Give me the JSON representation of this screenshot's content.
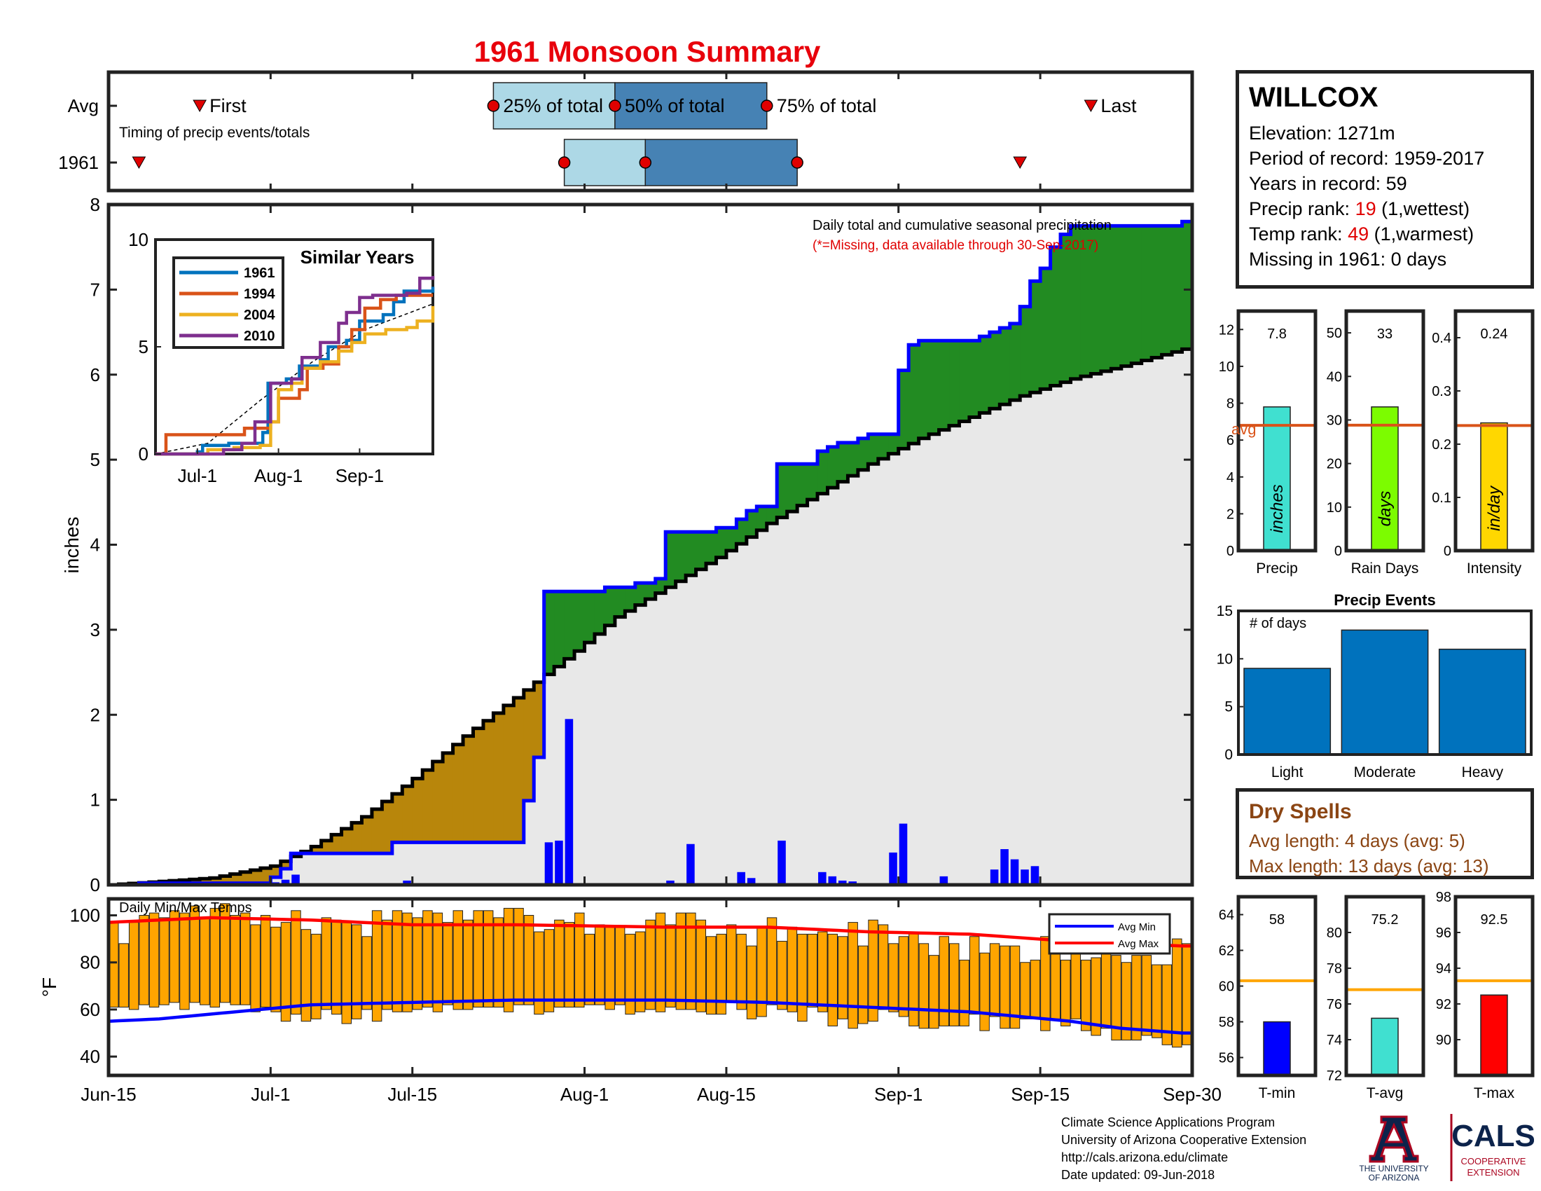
{
  "title": "1961 Monsoon Summary",
  "station": {
    "name": "WILLCOX",
    "elevation": "Elevation: 1271m",
    "period": "Period of record: 1959-2017",
    "years": "Years in record: 59",
    "precip_rank_label": "Precip rank: ",
    "precip_rank_value": "19",
    "precip_rank_note": " (1,wettest)",
    "temp_rank_label": "Temp rank: ",
    "temp_rank_value": "49",
    "temp_rank_note": " (1,warmest)",
    "missing": "Missing in 1961: 0 days"
  },
  "dry_spells": {
    "title": "Dry Spells",
    "avg_length": "Avg length: 4 days (avg: 5)",
    "max_length": "Max length: 13 days (avg: 13)"
  },
  "credits": {
    "line1": "Climate Science Applications Program",
    "line2": "University of Arizona Cooperative Extension",
    "line3": "http://cals.arizona.edu/climate",
    "line4": "Date updated: 09-Jun-2018"
  },
  "logos": {
    "ua_line1": "THE UNIVERSITY",
    "ua_line2": "OF ARIZONA",
    "cals_name": "CALS",
    "cals_line1": "COOPERATIVE",
    "cals_line2": "EXTENSION"
  },
  "colors": {
    "title_red": "#e8000b",
    "above_avg": "#228b22",
    "below_avg": "#b8860b",
    "cumulative_line": "#0000ff",
    "daily_bars": "#0000ff",
    "clim_fill": "#e8e8e8",
    "temp_bars": "#ffa500",
    "avg_min": "#0000ff",
    "avg_max": "#ff0000",
    "timing_light": "#add8e6",
    "timing_dark": "#4682b4"
  },
  "chart_data": [
    {
      "id": "timing",
      "type": "timeline",
      "rows": [
        "Avg",
        "1961"
      ],
      "annotation": "Timing of precip events/totals",
      "labels": {
        "first": "First",
        "q25": "25% of total",
        "q50": "50% of total",
        "q75": "75% of total",
        "last": "Last"
      },
      "avg": {
        "first": "Jun-24",
        "q25": "Jul-23",
        "q50": "Aug-4",
        "q75": "Aug-19",
        "last": "Sep-20"
      },
      "year_1961": {
        "first": "Jun-18",
        "q25": "Jul-30",
        "q50": "Aug-7",
        "q75": "Aug-22",
        "last": "Sep-13"
      }
    },
    {
      "id": "cumulative",
      "type": "area",
      "title": "Daily total and cumulative seasonal precipitation",
      "note": "(*=Missing, data available through 30-Sep-2017)",
      "ylabel": "inches",
      "ylim": [
        0,
        8
      ],
      "yticks": [
        0,
        1,
        2,
        3,
        4,
        5,
        6,
        7,
        8
      ],
      "xlim": [
        "Jun-15",
        "Sep-30"
      ],
      "xticks": [
        "Jun-15",
        "Jul-1",
        "Jul-15",
        "Aug-1",
        "Aug-15",
        "Sep-1",
        "Sep-15",
        "Sep-30"
      ],
      "avg_cumulative": [
        [
          0,
          0
        ],
        [
          10,
          0.08
        ],
        [
          16,
          0.22
        ],
        [
          20,
          0.45
        ],
        [
          25,
          0.8
        ],
        [
          30,
          1.25
        ],
        [
          35,
          1.75
        ],
        [
          40,
          2.2
        ],
        [
          46,
          2.75
        ],
        [
          50,
          3.15
        ],
        [
          55,
          3.5
        ],
        [
          60,
          3.85
        ],
        [
          65,
          4.25
        ],
        [
          70,
          4.6
        ],
        [
          75,
          4.95
        ],
        [
          80,
          5.25
        ],
        [
          85,
          5.5
        ],
        [
          90,
          5.75
        ],
        [
          95,
          5.95
        ],
        [
          100,
          6.1
        ],
        [
          106,
          6.3
        ]
      ],
      "cumulative_1961": [
        [
          0,
          0
        ],
        [
          3,
          0.02
        ],
        [
          16,
          0.09
        ],
        [
          17,
          0.19
        ],
        [
          18,
          0.37
        ],
        [
          27,
          0.37
        ],
        [
          28,
          0.5
        ],
        [
          40,
          0.5
        ],
        [
          41,
          0.99
        ],
        [
          42,
          1.5
        ],
        [
          43,
          3.45
        ],
        [
          49,
          3.5
        ],
        [
          52,
          3.55
        ],
        [
          54,
          3.6
        ],
        [
          55,
          4.15
        ],
        [
          60,
          4.2
        ],
        [
          62,
          4.3
        ],
        [
          63,
          4.4
        ],
        [
          64,
          4.45
        ],
        [
          66,
          4.95
        ],
        [
          69,
          4.95
        ],
        [
          70,
          5.1
        ],
        [
          71,
          5.15
        ],
        [
          72,
          5.2
        ],
        [
          74,
          5.25
        ],
        [
          75,
          5.3
        ],
        [
          77,
          5.3
        ],
        [
          78,
          6.05
        ],
        [
          79,
          6.35
        ],
        [
          80,
          6.4
        ],
        [
          85,
          6.4
        ],
        [
          86,
          6.45
        ],
        [
          87,
          6.5
        ],
        [
          88,
          6.55
        ],
        [
          89,
          6.6
        ],
        [
          90,
          6.8
        ],
        [
          91,
          7.1
        ],
        [
          92,
          7.25
        ],
        [
          93,
          7.5
        ],
        [
          94,
          7.65
        ],
        [
          95,
          7.75
        ],
        [
          96,
          7.75
        ],
        [
          106,
          7.8
        ]
      ],
      "daily_1961": [
        [
          3,
          0.02
        ],
        [
          16,
          0.03
        ],
        [
          17,
          0.06
        ],
        [
          18,
          0.12
        ],
        [
          28,
          0.02
        ],
        [
          29,
          0.05
        ],
        [
          43,
          0.5
        ],
        [
          44,
          0.52
        ],
        [
          45,
          1.95
        ],
        [
          48,
          0.02
        ],
        [
          53,
          0.02
        ],
        [
          55,
          0.05
        ],
        [
          57,
          0.48
        ],
        [
          61,
          0.01
        ],
        [
          62,
          0.15
        ],
        [
          63,
          0.08
        ],
        [
          66,
          0.52
        ],
        [
          70,
          0.15
        ],
        [
          71,
          0.1
        ],
        [
          72,
          0.05
        ],
        [
          73,
          0.04
        ],
        [
          77,
          0.38
        ],
        [
          78,
          0.72
        ],
        [
          82,
          0.1
        ],
        [
          87,
          0.18
        ],
        [
          88,
          0.42
        ],
        [
          89,
          0.3
        ],
        [
          90,
          0.18
        ],
        [
          91,
          0.22
        ]
      ]
    },
    {
      "id": "similar_years",
      "type": "line",
      "title": "Similar Years",
      "ylim": [
        0,
        10
      ],
      "yticks": [
        0,
        5,
        10
      ],
      "xticks": [
        "Jul-1",
        "Aug-1",
        "Sep-1"
      ],
      "series": [
        {
          "name": "1961",
          "color": "#0072bd",
          "values": [
            [
              0,
              0
            ],
            [
              16,
              0.1
            ],
            [
              18,
              0.4
            ],
            [
              28,
              0.5
            ],
            [
              41,
              1
            ],
            [
              43,
              3.3
            ],
            [
              50,
              3.5
            ],
            [
              55,
              4.1
            ],
            [
              63,
              4.4
            ],
            [
              66,
              5
            ],
            [
              73,
              5.3
            ],
            [
              78,
              6.2
            ],
            [
              87,
              6.5
            ],
            [
              91,
              7.1
            ],
            [
              95,
              7.6
            ],
            [
              106,
              7.8
            ]
          ]
        },
        {
          "name": "1994",
          "color": "#d95319",
          "values": [
            [
              0,
              0
            ],
            [
              4,
              0.9
            ],
            [
              30,
              0.9
            ],
            [
              34,
              1.2
            ],
            [
              44,
              1.5
            ],
            [
              47,
              2.6
            ],
            [
              55,
              3
            ],
            [
              58,
              4
            ],
            [
              64,
              4.2
            ],
            [
              70,
              5
            ],
            [
              75,
              5.8
            ],
            [
              80,
              6.8
            ],
            [
              86,
              7.2
            ],
            [
              92,
              7.4
            ],
            [
              106,
              7.4
            ]
          ]
        },
        {
          "name": "2004",
          "color": "#edb120",
          "values": [
            [
              0,
              0
            ],
            [
              20,
              0.2
            ],
            [
              30,
              0.3
            ],
            [
              40,
              0.4
            ],
            [
              44,
              1.5
            ],
            [
              47,
              3.0
            ],
            [
              52,
              3.3
            ],
            [
              56,
              4.0
            ],
            [
              63,
              4.3
            ],
            [
              70,
              4.8
            ],
            [
              75,
              5.2
            ],
            [
              80,
              5.6
            ],
            [
              88,
              5.8
            ],
            [
              96,
              5.9
            ],
            [
              100,
              6.2
            ],
            [
              106,
              6.9
            ]
          ]
        },
        {
          "name": "2010",
          "color": "#7e2f8e",
          "values": [
            [
              0,
              0
            ],
            [
              26,
              0.2
            ],
            [
              33,
              0.5
            ],
            [
              38,
              1.5
            ],
            [
              44,
              3.3
            ],
            [
              52,
              3.5
            ],
            [
              56,
              4.5
            ],
            [
              63,
              5.2
            ],
            [
              70,
              6.1
            ],
            [
              73,
              6.6
            ],
            [
              78,
              7.3
            ],
            [
              83,
              7.4
            ],
            [
              96,
              7.5
            ],
            [
              101,
              8.2
            ],
            [
              106,
              8.3
            ]
          ]
        }
      ],
      "avg_dashed": [
        [
          0,
          0
        ],
        [
          20,
          0.5
        ],
        [
          40,
          2.5
        ],
        [
          60,
          4.3
        ],
        [
          80,
          5.8
        ],
        [
          106,
          7.0
        ]
      ]
    },
    {
      "id": "precip_stats",
      "type": "bar",
      "panels": [
        {
          "label": "Precip",
          "value": 7.8,
          "value_label": "7.8",
          "unit": "inches",
          "avg": 6.8,
          "avg_label": "avg",
          "ylim": [
            0,
            13
          ],
          "yticks": [
            0,
            2,
            4,
            6,
            8,
            10,
            12
          ],
          "color": "#40e0d0"
        },
        {
          "label": "Rain Days",
          "value": 33,
          "value_label": "33",
          "unit": "days",
          "avg": 28.8,
          "ylim": [
            0,
            55
          ],
          "yticks": [
            0,
            10,
            20,
            30,
            40,
            50
          ],
          "color": "#7cfc00"
        },
        {
          "label": "Intensity",
          "value": 0.24,
          "value_label": "0.24",
          "unit": "in/day",
          "avg": 0.235,
          "ylim": [
            0,
            0.45
          ],
          "yticks": [
            0,
            0.1,
            0.2,
            0.3,
            0.4
          ],
          "color": "#ffd700"
        }
      ]
    },
    {
      "id": "precip_events",
      "type": "bar",
      "title": "Precip Events",
      "ylabel": "# of days",
      "categories": [
        "Light",
        "Moderate",
        "Heavy"
      ],
      "values": [
        9,
        13,
        11
      ],
      "ylim": [
        0,
        15
      ],
      "yticks": [
        0,
        5,
        10,
        15
      ]
    },
    {
      "id": "temps",
      "type": "bar",
      "title": "Daily Min/Max Temps",
      "ylabel": "°F",
      "ylim": [
        32,
        107
      ],
      "yticks": [
        40,
        60,
        80,
        100
      ],
      "legend": [
        "Avg Min",
        "Avg Max"
      ],
      "legend_position": "top-right",
      "max_temps": [
        97,
        88,
        97,
        100,
        101,
        99,
        102,
        101,
        104,
        99,
        103,
        105,
        100,
        101,
        96,
        100,
        95,
        97,
        102,
        94,
        92,
        99,
        98,
        97,
        96,
        91,
        102,
        98,
        102,
        101,
        99,
        102,
        101,
        97,
        102,
        98,
        102,
        102,
        99,
        103,
        103,
        100,
        93,
        94,
        98,
        97,
        101,
        92,
        96,
        95,
        95,
        92,
        93,
        98,
        101,
        96,
        101,
        101,
        98,
        91,
        92,
        96,
        92,
        87,
        95,
        99,
        89,
        95,
        92,
        92,
        93,
        92,
        91,
        97,
        87,
        98,
        96,
        88,
        91,
        93,
        88,
        83,
        91,
        88,
        81,
        91,
        84,
        88,
        87,
        87,
        80,
        81,
        91,
        89,
        81,
        88,
        81,
        82,
        88,
        83,
        80,
        83,
        83,
        79,
        79,
        90,
        88
      ],
      "min_temps": [
        61,
        61,
        60,
        62,
        61,
        62,
        63,
        60,
        63,
        62,
        61,
        63,
        62,
        62,
        59,
        61,
        59,
        55,
        58,
        55,
        56,
        60,
        58,
        54,
        56,
        60,
        55,
        60,
        59,
        59,
        60,
        61,
        59,
        62,
        60,
        60,
        61,
        61,
        61,
        59,
        62,
        62,
        58,
        59,
        61,
        61,
        61,
        62,
        62,
        60,
        62,
        58,
        59,
        60,
        59,
        61,
        60,
        60,
        59,
        58,
        58,
        63,
        60,
        56,
        57,
        62,
        60,
        59,
        55,
        61,
        59,
        53,
        56,
        52,
        54,
        55,
        60,
        59,
        57,
        53,
        52,
        52,
        53,
        53,
        53,
        58,
        51,
        57,
        52,
        52,
        56,
        56,
        51,
        56,
        53,
        56,
        51,
        49,
        52,
        47,
        47,
        47,
        49,
        48,
        45,
        44,
        45
      ],
      "avg_min": [
        [
          0,
          55
        ],
        [
          5,
          56
        ],
        [
          10,
          58
        ],
        [
          20,
          62
        ],
        [
          30,
          63
        ],
        [
          40,
          64
        ],
        [
          55,
          64
        ],
        [
          65,
          63
        ],
        [
          75,
          61
        ],
        [
          85,
          59
        ],
        [
          95,
          55
        ],
        [
          100,
          52
        ],
        [
          106,
          50
        ]
      ],
      "avg_max": [
        [
          0,
          97
        ],
        [
          10,
          99
        ],
        [
          20,
          98
        ],
        [
          30,
          96
        ],
        [
          40,
          96
        ],
        [
          55,
          95
        ],
        [
          65,
          95
        ],
        [
          75,
          93
        ],
        [
          85,
          92
        ],
        [
          95,
          89
        ],
        [
          106,
          87
        ]
      ]
    },
    {
      "id": "temp_stats",
      "type": "bar",
      "panels": [
        {
          "label": "T-min",
          "value": 58,
          "value_label": "58",
          "avg": 60.3,
          "ylim": [
            55,
            65
          ],
          "yticks": [
            56,
            58,
            60,
            62,
            64
          ],
          "color": "#0000ff"
        },
        {
          "label": "T-avg",
          "value": 75.2,
          "value_label": "75.2",
          "avg": 76.8,
          "ylim": [
            72,
            82
          ],
          "yticks": [
            72,
            74,
            76,
            78,
            80
          ],
          "color": "#40e0d0"
        },
        {
          "label": "T-max",
          "value": 92.5,
          "value_label": "92.5",
          "avg": 93.3,
          "ylim": [
            88,
            98
          ],
          "yticks": [
            90,
            92,
            94,
            96,
            98
          ],
          "color": "#ff0000"
        }
      ]
    }
  ]
}
